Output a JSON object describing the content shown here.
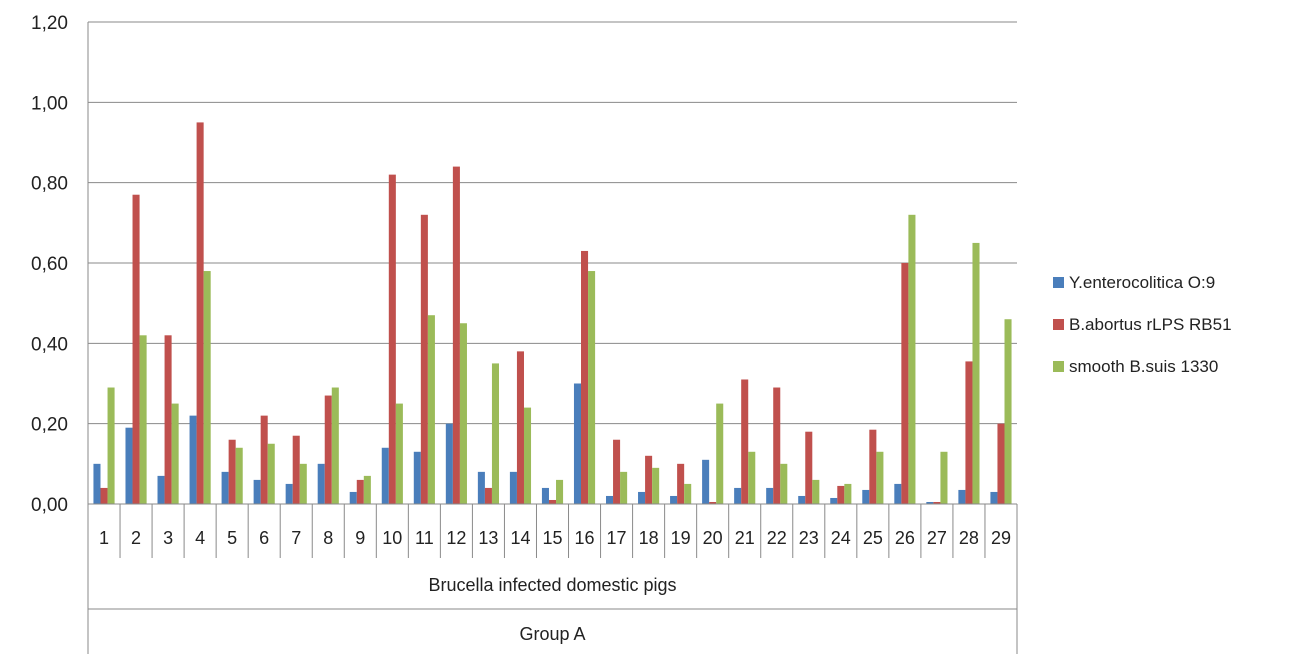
{
  "chart_data": {
    "type": "bar",
    "categories": [
      "1",
      "2",
      "3",
      "4",
      "5",
      "6",
      "7",
      "8",
      "9",
      "10",
      "11",
      "12",
      "13",
      "14",
      "15",
      "16",
      "17",
      "18",
      "19",
      "20",
      "21",
      "22",
      "23",
      "24",
      "25",
      "26",
      "27",
      "28",
      "29"
    ],
    "category_group_labels": [
      "Brucella infected domestic pigs",
      "Group A"
    ],
    "y_tick_labels": [
      "0,00",
      "0,20",
      "0,40",
      "0,60",
      "0,80",
      "1,00",
      "1,20"
    ],
    "ylim": [
      0,
      1.2
    ],
    "grid": true,
    "legend_position": "right",
    "series": [
      {
        "name": "Y.enterocolitica O:9",
        "color": "#4a7ebb",
        "values": [
          0.1,
          0.19,
          0.07,
          0.22,
          0.08,
          0.06,
          0.05,
          0.1,
          0.03,
          0.14,
          0.13,
          0.2,
          0.08,
          0.08,
          0.04,
          0.3,
          0.02,
          0.03,
          0.02,
          0.11,
          0.04,
          0.04,
          0.02,
          0.015,
          0.035,
          0.05,
          0.005,
          0.035,
          0.03
        ]
      },
      {
        "name": "B.abortus rLPS RB51",
        "color": "#c0504d",
        "values": [
          0.04,
          0.77,
          0.42,
          0.95,
          0.16,
          0.22,
          0.17,
          0.27,
          0.06,
          0.82,
          0.72,
          0.84,
          0.04,
          0.38,
          0.01,
          0.63,
          0.16,
          0.12,
          0.1,
          0.005,
          0.31,
          0.29,
          0.18,
          0.045,
          0.185,
          0.6,
          0.005,
          0.355,
          0.2
        ]
      },
      {
        "name": "smooth B.suis 1330",
        "color": "#9bbb59",
        "values": [
          0.29,
          0.42,
          0.25,
          0.58,
          0.14,
          0.15,
          0.1,
          0.29,
          0.07,
          0.25,
          0.47,
          0.45,
          0.35,
          0.24,
          0.06,
          0.58,
          0.08,
          0.09,
          0.05,
          0.25,
          0.13,
          0.1,
          0.06,
          0.05,
          0.13,
          0.72,
          0.13,
          0.65,
          0.46
        ]
      }
    ]
  }
}
